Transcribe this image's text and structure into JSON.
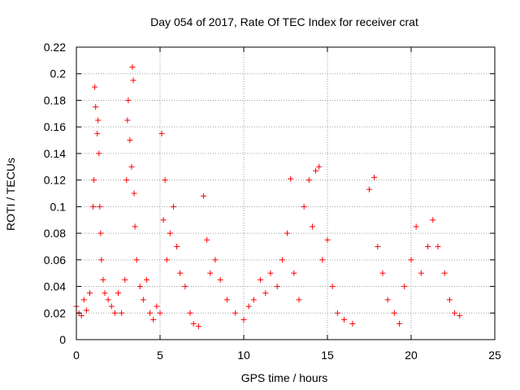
{
  "chart_data": {
    "type": "scatter",
    "title": "Day 054 of 2017, Rate Of TEC Index for receiver crat",
    "xlabel": "GPS time / hours",
    "ylabel": "ROTI / TECUs",
    "xlim": [
      0,
      25
    ],
    "ylim": [
      0,
      0.22
    ],
    "x_ticks": [
      0,
      5,
      10,
      15,
      20,
      25
    ],
    "y_ticks": [
      0,
      0.02,
      0.04,
      0.06,
      0.08,
      0.1,
      0.12,
      0.14,
      0.16,
      0.18,
      0.2,
      0.22
    ],
    "x_tick_labels": [
      "0",
      "5",
      "10",
      "15",
      "20",
      "25"
    ],
    "y_tick_labels": [
      "0",
      "0.02",
      "0.04",
      "0.06",
      "0.08",
      "0.1",
      "0.12",
      "0.14",
      "0.16",
      "0.18",
      "0.2",
      "0.22"
    ],
    "grid": true,
    "marker": "+",
    "color": "#ff0000",
    "series": [
      {
        "values": [
          [
            0.0,
            0.025
          ],
          [
            0.15,
            0.02
          ],
          [
            0.3,
            0.018
          ],
          [
            0.45,
            0.03
          ],
          [
            0.6,
            0.022
          ],
          [
            0.8,
            0.035
          ],
          [
            1.0,
            0.1
          ],
          [
            1.05,
            0.12
          ],
          [
            1.1,
            0.19
          ],
          [
            1.15,
            0.175
          ],
          [
            1.25,
            0.155
          ],
          [
            1.3,
            0.165
          ],
          [
            1.35,
            0.14
          ],
          [
            1.4,
            0.1
          ],
          [
            1.45,
            0.08
          ],
          [
            1.5,
            0.06
          ],
          [
            1.6,
            0.045
          ],
          [
            1.7,
            0.035
          ],
          [
            1.9,
            0.03
          ],
          [
            2.1,
            0.025
          ],
          [
            2.3,
            0.02
          ],
          [
            2.5,
            0.035
          ],
          [
            2.7,
            0.02
          ],
          [
            2.9,
            0.045
          ],
          [
            3.0,
            0.12
          ],
          [
            3.05,
            0.165
          ],
          [
            3.1,
            0.18
          ],
          [
            3.2,
            0.15
          ],
          [
            3.3,
            0.13
          ],
          [
            3.35,
            0.205
          ],
          [
            3.4,
            0.195
          ],
          [
            3.45,
            0.11
          ],
          [
            3.5,
            0.085
          ],
          [
            3.6,
            0.06
          ],
          [
            3.8,
            0.04
          ],
          [
            4.0,
            0.03
          ],
          [
            4.2,
            0.045
          ],
          [
            4.4,
            0.02
          ],
          [
            4.6,
            0.015
          ],
          [
            4.8,
            0.025
          ],
          [
            5.0,
            0.02
          ],
          [
            5.1,
            0.155
          ],
          [
            5.2,
            0.09
          ],
          [
            5.3,
            0.12
          ],
          [
            5.4,
            0.06
          ],
          [
            5.6,
            0.08
          ],
          [
            5.8,
            0.1
          ],
          [
            6.0,
            0.07
          ],
          [
            6.2,
            0.05
          ],
          [
            6.5,
            0.04
          ],
          [
            6.8,
            0.02
          ],
          [
            7.0,
            0.012
          ],
          [
            7.3,
            0.01
          ],
          [
            7.6,
            0.108
          ],
          [
            7.8,
            0.075
          ],
          [
            8.0,
            0.05
          ],
          [
            8.3,
            0.06
          ],
          [
            8.6,
            0.045
          ],
          [
            9.0,
            0.03
          ],
          [
            9.5,
            0.02
          ],
          [
            10.0,
            0.015
          ],
          [
            10.3,
            0.025
          ],
          [
            10.6,
            0.03
          ],
          [
            11.0,
            0.045
          ],
          [
            11.3,
            0.035
          ],
          [
            11.6,
            0.05
          ],
          [
            12.0,
            0.04
          ],
          [
            12.3,
            0.06
          ],
          [
            12.6,
            0.08
          ],
          [
            12.8,
            0.121
          ],
          [
            13.0,
            0.05
          ],
          [
            13.3,
            0.03
          ],
          [
            13.6,
            0.1
          ],
          [
            13.9,
            0.12
          ],
          [
            14.1,
            0.085
          ],
          [
            14.3,
            0.127
          ],
          [
            14.5,
            0.13
          ],
          [
            14.7,
            0.06
          ],
          [
            15.0,
            0.075
          ],
          [
            15.3,
            0.04
          ],
          [
            15.6,
            0.02
          ],
          [
            16.0,
            0.015
          ],
          [
            16.5,
            0.012
          ],
          [
            17.5,
            0.113
          ],
          [
            17.8,
            0.122
          ],
          [
            18.0,
            0.07
          ],
          [
            18.3,
            0.05
          ],
          [
            18.6,
            0.03
          ],
          [
            19.0,
            0.02
          ],
          [
            19.3,
            0.012
          ],
          [
            19.6,
            0.04
          ],
          [
            20.0,
            0.06
          ],
          [
            20.3,
            0.085
          ],
          [
            20.6,
            0.05
          ],
          [
            21.0,
            0.07
          ],
          [
            21.3,
            0.09
          ],
          [
            21.6,
            0.07
          ],
          [
            22.0,
            0.05
          ],
          [
            22.3,
            0.03
          ],
          [
            22.6,
            0.02
          ],
          [
            22.9,
            0.018
          ]
        ]
      }
    ]
  }
}
